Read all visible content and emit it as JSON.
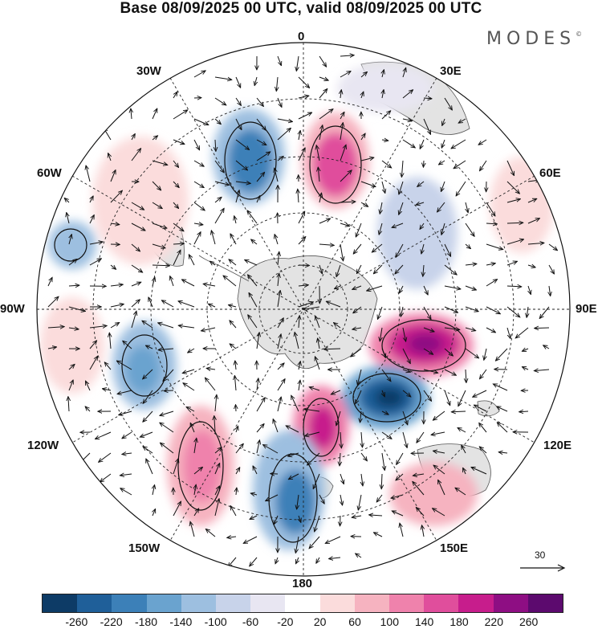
{
  "title": "Base 08/09/2025 00 UTC, valid 08/09/2025 00 UTC",
  "brand": "MODES",
  "brand_mark": "©",
  "longitude_labels": {
    "top": "0",
    "bottom": "180",
    "left": "90W",
    "right": "90E",
    "w30": "30W",
    "e30": "30E",
    "w60": "60W",
    "e60": "60E",
    "w120": "120W",
    "e120": "120E",
    "w150": "150W",
    "e150": "150E"
  },
  "reference_vector": {
    "label": "30"
  },
  "colorbar": {
    "colors": [
      "#0d3b66",
      "#1f5f99",
      "#3c80b8",
      "#6aa3cf",
      "#9dbfe0",
      "#c8d3ea",
      "#e8e6f2",
      "#ffffff",
      "#fbdcdc",
      "#f6b3c0",
      "#ef82ac",
      "#e04e9c",
      "#c71d8c",
      "#8e0e83",
      "#5c0a6e"
    ],
    "tick_labels": [
      "-260",
      "-220",
      "-180",
      "-140",
      "-100",
      "-60",
      "-20",
      "20",
      "60",
      "100",
      "140",
      "180",
      "220",
      "260"
    ]
  },
  "anomalies": [
    {
      "name": "pos-atlantic-0",
      "value": 150
    },
    {
      "name": "neg-30w",
      "value": -170
    },
    {
      "name": "pos-east-90e",
      "value": 230
    },
    {
      "name": "neg-120e",
      "value": -250
    },
    {
      "name": "pos-near-180",
      "value": 190
    },
    {
      "name": "neg-150w-180",
      "value": -150
    },
    {
      "name": "pos-150w",
      "value": 120
    },
    {
      "name": "neg-90w",
      "value": -130
    },
    {
      "name": "neg-60w",
      "value": -90
    },
    {
      "name": "pos-pacific-150e",
      "value": 90
    }
  ]
}
